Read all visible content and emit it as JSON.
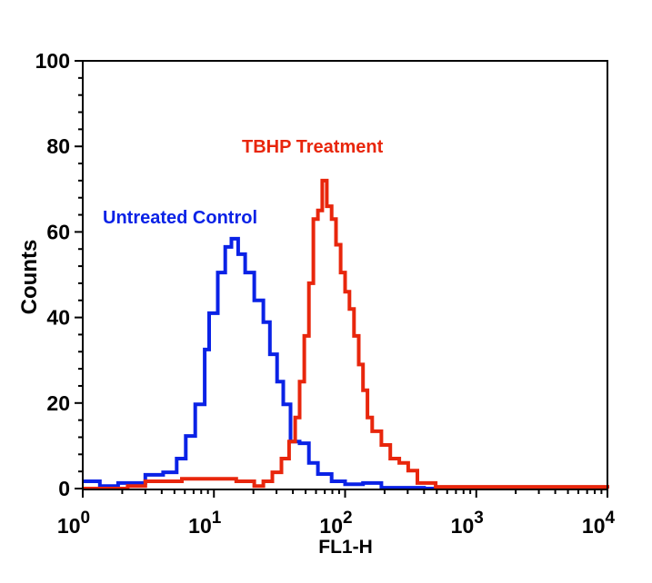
{
  "chart_data": {
    "type": "line",
    "title": "",
    "xlabel": "FL1-H",
    "ylabel": "Counts",
    "xscale": "log",
    "xlim": [
      1,
      10000
    ],
    "ylim": [
      0,
      100
    ],
    "grid": false,
    "y_ticks": [
      "0",
      "20",
      "40",
      "60",
      "80",
      "100"
    ],
    "y_tick_values": [
      0,
      20,
      40,
      60,
      80,
      100
    ],
    "x_ticks": [
      {
        "base": "10",
        "exp": "0",
        "value": 1
      },
      {
        "base": "10",
        "exp": "1",
        "value": 10
      },
      {
        "base": "10",
        "exp": "2",
        "value": 100
      },
      {
        "base": "10",
        "exp": "3",
        "value": 1000
      },
      {
        "base": "10",
        "exp": "4",
        "value": 10000
      }
    ],
    "series": [
      {
        "name": "Untreated Control",
        "color": "#0a22e6",
        "x": [
          1,
          1.35,
          1.86,
          3.0,
          4.1,
          5.2,
          6.1,
          7.2,
          8.5,
          9.2,
          10.7,
          12.2,
          13.6,
          15.3,
          17.3,
          20.3,
          23.8,
          26.7,
          30.3,
          33.8,
          38.4,
          45,
          53,
          62,
          79,
          100,
          137,
          189,
          400,
          10000
        ],
        "y": [
          1.7,
          0.6,
          1.3,
          3.2,
          3.8,
          7,
          12.3,
          19.7,
          32.5,
          41,
          50.5,
          56.5,
          58.4,
          54.8,
          50.5,
          44,
          38.9,
          31.4,
          25,
          19.7,
          11,
          10.6,
          6,
          3.4,
          1.7,
          1,
          1.3,
          0.2,
          0,
          0
        ]
      },
      {
        "name": "TBHP Treatment",
        "color": "#e8260c",
        "x": [
          1,
          2.2,
          3.0,
          5.7,
          10.7,
          14.8,
          20.3,
          23.8,
          27.9,
          32.7,
          37.4,
          41.6,
          45,
          48.8,
          53,
          57.3,
          62,
          67,
          72.6,
          79,
          85.3,
          92.5,
          100,
          108,
          117,
          127,
          137,
          148,
          161,
          189,
          221,
          259,
          303,
          356,
          490,
          10000
        ],
        "y": [
          0,
          0.6,
          1.7,
          2.3,
          2.3,
          1.7,
          0.6,
          1.7,
          3.8,
          7,
          11,
          16.6,
          25,
          35.7,
          48,
          63,
          65,
          72,
          66,
          63,
          57,
          50.5,
          46,
          42,
          35.7,
          29,
          23,
          16.6,
          13.4,
          10.2,
          7,
          6,
          4.2,
          1.3,
          0.4,
          0
        ]
      }
    ],
    "annotations": [
      "Untreated Control",
      "TBHP Treatment"
    ]
  }
}
